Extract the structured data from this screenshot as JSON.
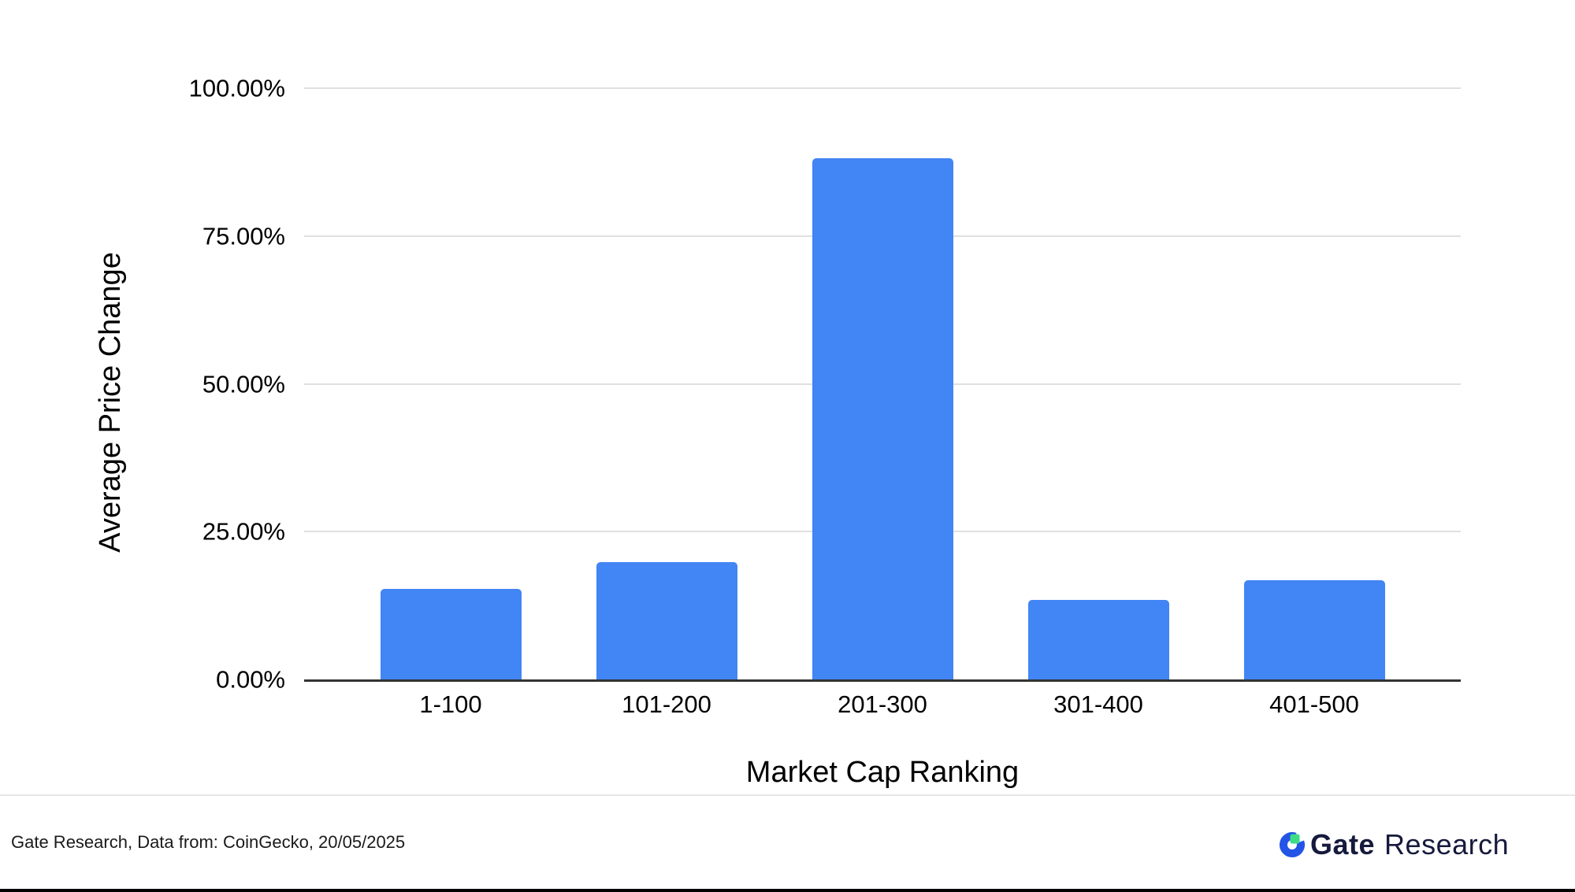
{
  "chart_data": {
    "type": "bar",
    "categories": [
      "1-100",
      "101-200",
      "201-300",
      "301-400",
      "401-500"
    ],
    "values": [
      15.3,
      19.9,
      88.2,
      13.5,
      16.8
    ],
    "xlabel": "Market Cap Ranking",
    "ylabel": "Average Price Change",
    "y_ticks": [
      "0.00%",
      "25.00%",
      "50.00%",
      "75.00%",
      "100.00%"
    ],
    "ylim": [
      0,
      100
    ],
    "grid": true,
    "legend": false
  },
  "footer": {
    "source": "Gate Research, Data from: CoinGecko, 20/05/2025",
    "logo_primary": "Gate",
    "logo_secondary": "Research"
  },
  "colors": {
    "bar": "#4285F4",
    "gridline": "#e0e0e0",
    "axis_line": "#333333",
    "divider": "#e7e7e7",
    "bottom_bar": "#000000",
    "logo_text": "#161a3c",
    "logo_blue": "#2354e6",
    "logo_green": "#3edc84"
  }
}
